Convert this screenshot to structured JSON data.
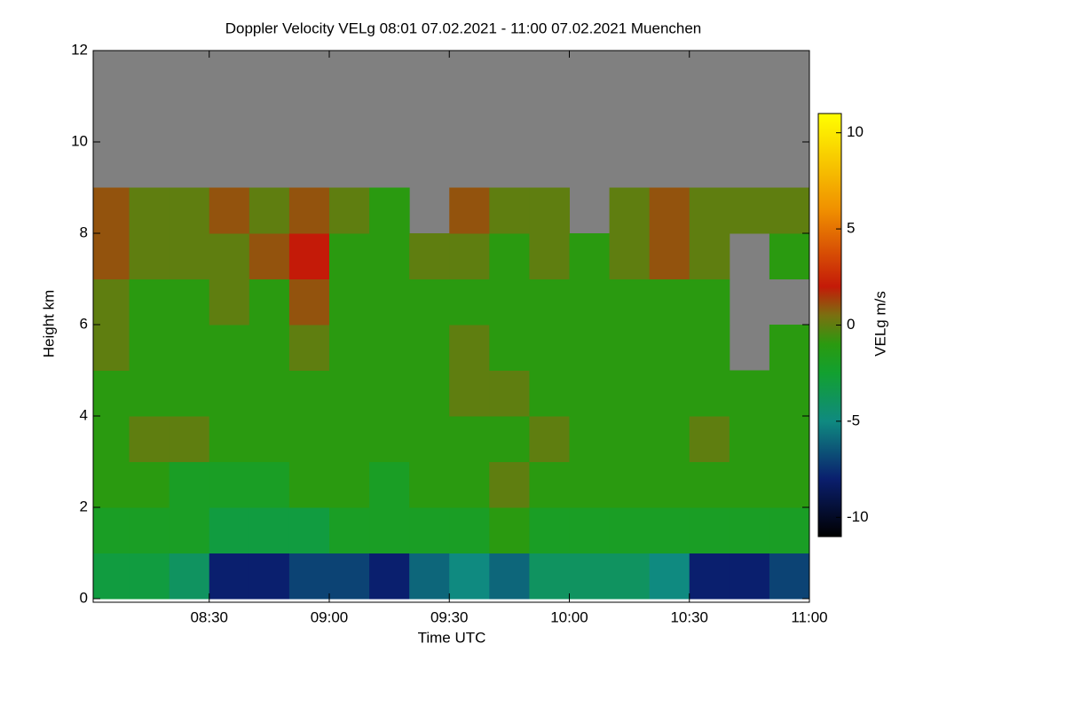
{
  "chart_data": {
    "type": "heatmap",
    "title": "Doppler Velocity VELg   08:01 07.02.2021 - 11:00 07.02.2021 Muenchen",
    "xlabel": "Time UTC",
    "ylabel": "Height km",
    "colorbar_label": "VELg m/s",
    "x": [
      "08:01",
      "08:10",
      "08:20",
      "08:30",
      "08:40",
      "08:50",
      "09:00",
      "09:10",
      "09:20",
      "09:30",
      "09:40",
      "09:50",
      "10:00",
      "10:10",
      "10:20",
      "10:30",
      "10:40",
      "10:50",
      "11:00"
    ],
    "y": [
      0,
      1,
      2,
      3,
      4,
      5,
      6,
      7,
      8,
      9,
      10,
      11,
      12
    ],
    "values": [
      [
        -3,
        -3,
        -4,
        -8,
        -8,
        -7,
        -7,
        -8,
        -6,
        -5,
        -6,
        -4,
        -4,
        -4,
        -5,
        -8,
        -8,
        -7
      ],
      [
        -2,
        -2,
        -2,
        -3,
        -3,
        -3,
        -2,
        -2,
        -2,
        -2,
        -1,
        -2,
        -2,
        -2,
        -2,
        -2,
        -2,
        -2
      ],
      [
        -1,
        -1,
        -2,
        -2,
        -2,
        -1,
        -1,
        -2,
        -1,
        -1,
        0,
        -1,
        -1,
        -1,
        -1,
        -1,
        -1,
        -1
      ],
      [
        -1,
        0,
        0,
        -1,
        -1,
        -1,
        -1,
        -1,
        -1,
        -1,
        -1,
        0,
        -1,
        -1,
        -1,
        0,
        -1,
        -1
      ],
      [
        -1,
        -1,
        -1,
        -1,
        -1,
        -1,
        -1,
        -1,
        -1,
        0,
        0,
        -1,
        -1,
        -1,
        -1,
        -1,
        -1,
        -1
      ],
      [
        0,
        -1,
        -1,
        -1,
        -1,
        0,
        -1,
        -1,
        -1,
        0,
        -1,
        -1,
        -1,
        -1,
        -1,
        -1,
        null,
        -1
      ],
      [
        0,
        -1,
        -1,
        0,
        -1,
        1,
        -1,
        -1,
        -1,
        -1,
        -1,
        -1,
        -1,
        -1,
        -1,
        -1,
        null,
        null
      ],
      [
        1,
        0,
        0,
        0,
        1,
        2,
        -1,
        -1,
        0,
        0,
        -1,
        0,
        -1,
        0,
        1,
        0,
        null,
        -1
      ],
      [
        1,
        0,
        0,
        1,
        0,
        1,
        0,
        -1,
        null,
        1,
        0,
        0,
        null,
        0,
        1,
        0,
        0,
        0
      ],
      [
        null,
        null,
        null,
        null,
        null,
        null,
        null,
        null,
        null,
        null,
        null,
        null,
        null,
        null,
        null,
        null,
        null,
        null
      ],
      [
        null,
        null,
        null,
        null,
        null,
        null,
        null,
        null,
        null,
        null,
        null,
        null,
        null,
        null,
        null,
        null,
        null,
        null
      ],
      [
        null,
        null,
        null,
        null,
        null,
        null,
        null,
        null,
        null,
        null,
        null,
        null,
        null,
        null,
        null,
        null,
        null,
        null
      ]
    ],
    "xlim": [
      "08:01",
      "11:00"
    ],
    "xticks": [
      "08:30",
      "09:00",
      "09:30",
      "10:00",
      "10:30",
      "11:00"
    ],
    "ylim": [
      0,
      12
    ],
    "yticks": [
      0,
      2,
      4,
      6,
      8,
      10,
      12
    ],
    "clim": [
      -11,
      11
    ],
    "cticks": [
      -10,
      -5,
      0,
      5,
      10
    ],
    "missing_color": "#808080",
    "colorscale": [
      {
        "value": -11,
        "color": "#000000"
      },
      {
        "value": -8,
        "color": "#0a1f6e"
      },
      {
        "value": -5,
        "color": "#0f8a80"
      },
      {
        "value": -2.5,
        "color": "#12a030"
      },
      {
        "value": -1,
        "color": "#2a9a10"
      },
      {
        "value": 0.5,
        "color": "#7a7010"
      },
      {
        "value": 2,
        "color": "#c41a08"
      },
      {
        "value": 6,
        "color": "#f09000"
      },
      {
        "value": 11,
        "color": "#ffff00"
      }
    ]
  }
}
